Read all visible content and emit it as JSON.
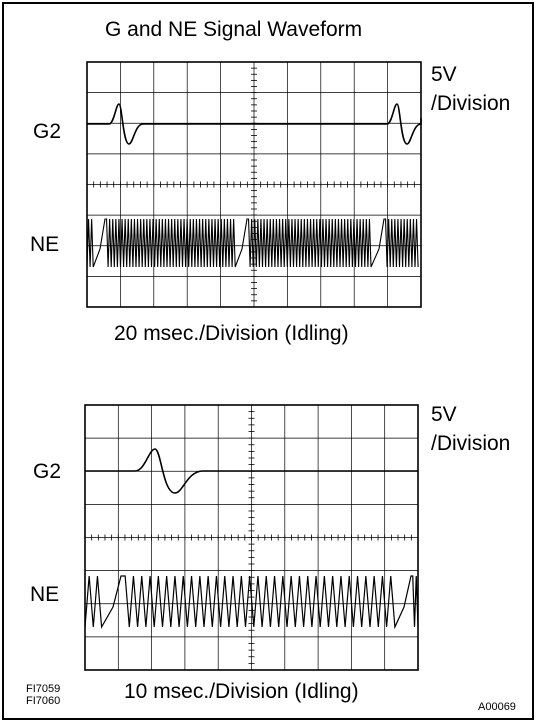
{
  "title": "G and NE Signal Waveform",
  "panels": [
    {
      "scale_line1": "5V",
      "scale_line2": "/Division",
      "channel_top": "G2",
      "channel_bottom": "NE",
      "caption": "20 msec./Division (Idling)"
    },
    {
      "scale_line1": "5V",
      "scale_line2": "/Division",
      "channel_top": "G2",
      "channel_bottom": "NE",
      "caption": "10 msec./Division (Idling)"
    }
  ],
  "figure_ids": [
    "FI7059",
    "FI7060"
  ],
  "image_id": "A00069"
}
